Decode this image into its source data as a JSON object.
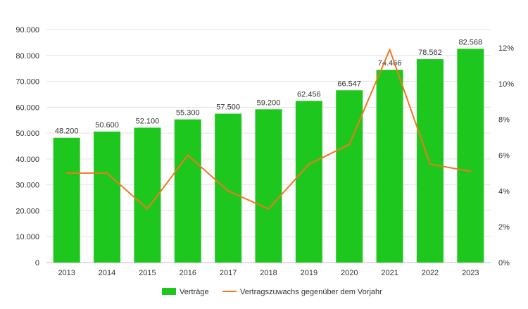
{
  "chart_data": {
    "type": "bar",
    "categories": [
      "2013",
      "2014",
      "2015",
      "2016",
      "2017",
      "2018",
      "2019",
      "2020",
      "2021",
      "2022",
      "2023"
    ],
    "series": [
      {
        "name": "Verträge",
        "type": "bar",
        "axis": "left",
        "color": "#1ec71e",
        "values": [
          48200,
          50600,
          52100,
          55300,
          57500,
          59200,
          62456,
          66547,
          74466,
          78562,
          82568
        ],
        "labels": [
          "48.200",
          "50.600",
          "52.100",
          "55.300",
          "57.500",
          "59.200",
          "62.456",
          "66.547",
          "74.466",
          "78.562",
          "82.568"
        ]
      },
      {
        "name": "Vertragszuwachs gegenüber dem Vorjahr",
        "type": "line",
        "axis": "right",
        "color": "#f07820",
        "values": [
          5.0,
          5.0,
          3.0,
          6.0,
          4.0,
          3.0,
          5.5,
          6.6,
          11.9,
          5.5,
          5.1
        ]
      }
    ],
    "y_left": {
      "min": 0,
      "max": 90000,
      "ticks": [
        0,
        10000,
        20000,
        30000,
        40000,
        50000,
        60000,
        70000,
        80000,
        90000
      ],
      "tick_labels": [
        "0",
        "10.000",
        "20.000",
        "30.000",
        "40.000",
        "50.000",
        "60.000",
        "70.000",
        "80.000",
        "90.000"
      ]
    },
    "y_right": {
      "min": 0,
      "max": 13,
      "ticks": [
        0,
        2,
        4,
        6,
        8,
        10,
        12
      ],
      "tick_labels": [
        "0%",
        "2%",
        "4%",
        "6%",
        "8%",
        "10%",
        "12%"
      ]
    },
    "grid": true,
    "legend": "bottom"
  }
}
